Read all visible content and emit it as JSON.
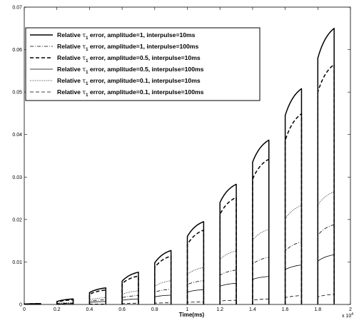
{
  "chart_data": {
    "type": "line",
    "xlabel": "Time(ms)",
    "x_multiplier_label": "x 10",
    "x_multiplier_exponent": "4",
    "xlim": [
      0,
      20000
    ],
    "ylim": [
      0,
      0.07
    ],
    "x_ticks": [
      0,
      2000,
      4000,
      6000,
      8000,
      10000,
      12000,
      14000,
      16000,
      18000,
      20000
    ],
    "x_tick_labels": [
      "0",
      "0.2",
      "0.4",
      "0.6",
      "0.8",
      "1",
      "1.2",
      "1.4",
      "1.6",
      "1.8",
      "2"
    ],
    "y_ticks": [
      0,
      0.01,
      0.02,
      0.03,
      0.04,
      0.05,
      0.06,
      0.07
    ],
    "y_tick_labels": [
      "0",
      "0.01",
      "0.02",
      "0.03",
      "0.04",
      "0.05",
      "0.06",
      "0.07"
    ],
    "grid": false,
    "legend_position": "top-left",
    "pulse_windows": [
      [
        0,
        1000
      ],
      [
        2000,
        3000
      ],
      [
        4000,
        5000
      ],
      [
        6000,
        7000
      ],
      [
        8000,
        9000
      ],
      [
        10000,
        11000
      ],
      [
        12000,
        13000
      ],
      [
        14000,
        15000
      ],
      [
        16000,
        17000
      ],
      [
        18000,
        19000
      ]
    ],
    "series": [
      {
        "name_prefix": "Relative ",
        "name_symbol": "τ",
        "name_sub": "1",
        "name_suffix": " error, amplitude=1, interpulse=10ms",
        "style": "solid",
        "width": 1.5,
        "pulse_start": [
          0.0001,
          0.0007,
          0.0028,
          0.0055,
          0.0098,
          0.016,
          0.024,
          0.0335,
          0.0445,
          0.058
        ],
        "pulse_end": [
          0.0002,
          0.0013,
          0.0039,
          0.0076,
          0.0127,
          0.0195,
          0.0283,
          0.0387,
          0.0508,
          0.065
        ]
      },
      {
        "name_prefix": "Relative ",
        "name_symbol": "τ",
        "name_sub": "1",
        "name_suffix": " error, amplitude=1, interpulse=100ms",
        "style": "dashdot",
        "width": 0.8,
        "pulse_start": [
          0,
          0.0002,
          0.0008,
          0.0016,
          0.0029,
          0.0047,
          0.0069,
          0.0095,
          0.0126,
          0.0163
        ],
        "pulse_end": [
          0,
          0.0003,
          0.0011,
          0.0021,
          0.0036,
          0.0056,
          0.0081,
          0.0111,
          0.0147,
          0.0188
        ]
      },
      {
        "name_prefix": "Relative ",
        "name_symbol": "τ",
        "name_sub": "1",
        "name_suffix": " error, amplitude=0.5, interpulse=10ms",
        "style": "dashed",
        "width": 1.5,
        "pulse_start": [
          0.0001,
          0.0006,
          0.0024,
          0.0049,
          0.0087,
          0.0141,
          0.0212,
          0.0295,
          0.0386,
          0.05
        ],
        "pulse_end": [
          0.0002,
          0.0011,
          0.0034,
          0.0067,
          0.0114,
          0.0175,
          0.0252,
          0.0342,
          0.0449,
          0.0565
        ]
      },
      {
        "name_prefix": "Relative ",
        "name_symbol": "τ",
        "name_sub": "1",
        "name_suffix": " error, amplitude=0.5, interpulse=100ms",
        "style": "solid",
        "width": 0.8,
        "pulse_start": [
          0,
          0.0001,
          0.0005,
          0.001,
          0.0018,
          0.0029,
          0.0043,
          0.0059,
          0.0082,
          0.0102
        ],
        "pulse_end": [
          0,
          0.0002,
          0.0007,
          0.0013,
          0.0022,
          0.0035,
          0.005,
          0.0066,
          0.0093,
          0.0117
        ]
      },
      {
        "name_prefix": "Relative ",
        "name_symbol": "τ",
        "name_sub": "1",
        "name_suffix": " error, amplitude=0.1, interpulse=10ms",
        "style": "dotted",
        "width": 0.8,
        "pulse_start": [
          0,
          0.0003,
          0.0011,
          0.0024,
          0.0043,
          0.0071,
          0.0106,
          0.0151,
          0.0201,
          0.0234
        ],
        "pulse_end": [
          0.0001,
          0.0005,
          0.0016,
          0.0032,
          0.0056,
          0.0087,
          0.0126,
          0.0177,
          0.0233,
          0.0265
        ]
      },
      {
        "name_prefix": "Relative ",
        "name_symbol": "τ",
        "name_sub": "1",
        "name_suffix": " error, amplitude=0.1, interpulse=100ms",
        "style": "dashed",
        "width": 0.8,
        "pulse_start": [
          0,
          0,
          0.0001,
          0.0002,
          0.0003,
          0.0005,
          0.0008,
          0.001,
          0.0016,
          0.0018
        ],
        "pulse_end": [
          0,
          0,
          0.0001,
          0.0003,
          0.0004,
          0.0006,
          0.001,
          0.0013,
          0.0021,
          0.0024
        ]
      }
    ]
  }
}
